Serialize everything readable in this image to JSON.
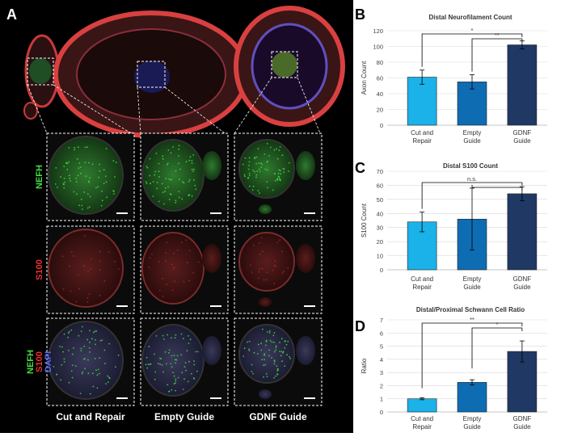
{
  "figure": {
    "panel_letters": [
      "A",
      "B",
      "C",
      "D"
    ]
  },
  "micrographs": {
    "columns": [
      "Cut and Repair",
      "Empty Guide",
      "GDNF Guide"
    ],
    "rows": [
      {
        "labels": [
          {
            "text": "NEFH",
            "color": "#44dd44"
          }
        ]
      },
      {
        "labels": [
          {
            "text": "S100",
            "color": "#ee3333"
          }
        ]
      },
      {
        "labels": [
          {
            "text": "NEFH",
            "color": "#44dd44"
          },
          {
            "text": "S100",
            "color": "#ee3333"
          },
          {
            "text": "DAPI",
            "color": "#5566ee"
          }
        ]
      }
    ],
    "colors": {
      "nefh": "#44dd44",
      "s100": "#ee3333",
      "dapi": "#5566ee"
    }
  },
  "chart_data": [
    {
      "type": "bar",
      "panel": "B",
      "title": "Distal Neurofilament Count",
      "ylabel": "Axon Count",
      "categories": [
        [
          "Cut and",
          "Repair"
        ],
        [
          "Empty",
          "Guide"
        ],
        [
          "GDNF",
          "Guide"
        ]
      ],
      "values": [
        61,
        55,
        102
      ],
      "errors": [
        9,
        9,
        5
      ],
      "ylim": [
        0,
        120
      ],
      "yticks": [
        0,
        20,
        40,
        60,
        80,
        100,
        120
      ],
      "grid": true,
      "colors": [
        "#1ab2e8",
        "#0e6cb3",
        "#1f3864"
      ],
      "significance": [
        {
          "from": 0,
          "to": 2,
          "label": "*"
        },
        {
          "from": 1,
          "to": 2,
          "label": "**"
        }
      ]
    },
    {
      "type": "bar",
      "panel": "C",
      "title": "Distal S100 Count",
      "ylabel": "S100 Count",
      "categories": [
        [
          "Cut and",
          "Repair"
        ],
        [
          "Empty",
          "Guide"
        ],
        [
          "GDNF",
          "Guide"
        ]
      ],
      "values": [
        34,
        36,
        54
      ],
      "errors": [
        7,
        22,
        5
      ],
      "ylim": [
        0,
        70
      ],
      "yticks": [
        0,
        10,
        20,
        30,
        40,
        50,
        60,
        70
      ],
      "grid": true,
      "colors": [
        "#1ab2e8",
        "#0e6cb3",
        "#1f3864"
      ],
      "significance": [
        {
          "from": 0,
          "to": 2,
          "label": "n.s."
        },
        {
          "from": 1,
          "to": 2,
          "label": ""
        }
      ]
    },
    {
      "type": "bar",
      "panel": "D",
      "title": "Distal/Proximal Schwann Cell Ratio",
      "ylabel": "Ratio",
      "categories": [
        [
          "Cut and",
          "Repair"
        ],
        [
          "Empty",
          "Guide"
        ],
        [
          "GDNF",
          "Guide"
        ]
      ],
      "values": [
        1.0,
        2.25,
        4.6
      ],
      "errors": [
        0.07,
        0.2,
        0.8
      ],
      "ylim": [
        0,
        7
      ],
      "yticks": [
        0,
        1,
        2,
        3,
        4,
        5,
        6,
        7
      ],
      "grid": true,
      "colors": [
        "#1ab2e8",
        "#0e6cb3",
        "#1f3864"
      ],
      "significance": [
        {
          "from": 0,
          "to": 2,
          "label": "**"
        },
        {
          "from": 1,
          "to": 2,
          "label": "*"
        }
      ]
    }
  ]
}
